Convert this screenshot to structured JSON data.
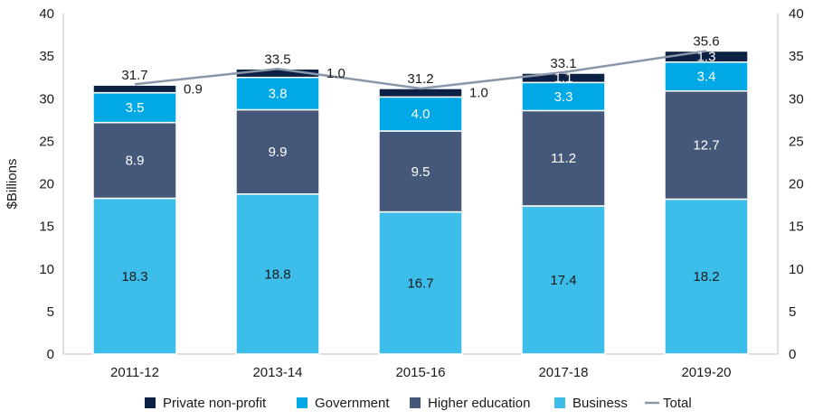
{
  "chart_data": {
    "type": "bar",
    "stacked": true,
    "categories": [
      "2011-12",
      "2013-14",
      "2015-16",
      "2017-18",
      "2019-20"
    ],
    "series": [
      {
        "name": "Business",
        "values": [
          18.3,
          18.8,
          16.7,
          17.4,
          18.2
        ],
        "color": "#3dbde9",
        "label_color": "#1a1a1a"
      },
      {
        "name": "Higher education",
        "values": [
          8.9,
          9.9,
          9.5,
          11.2,
          12.7
        ],
        "color": "#46587a",
        "label_color": "#ffffff"
      },
      {
        "name": "Government",
        "values": [
          3.5,
          3.8,
          4.0,
          3.3,
          3.4
        ],
        "color": "#00a8e6",
        "label_color": "#ffffff"
      },
      {
        "name": "Private non-profit",
        "values": [
          0.9,
          1.0,
          1.0,
          1.1,
          1.3
        ],
        "color": "#0d2145",
        "label_color": "#ffffff"
      }
    ],
    "total": {
      "name": "Total",
      "values": [
        31.7,
        33.5,
        31.2,
        33.1,
        35.6
      ],
      "color": "#8a97ab"
    },
    "small_value_labels": [
      "0.9",
      "1.0",
      "1.0",
      "1.1",
      "1.3"
    ],
    "ylabel": "$Billions",
    "ylim": [
      0,
      40
    ],
    "yticks": [
      0,
      5,
      10,
      15,
      20,
      25,
      30,
      35,
      40
    ],
    "secondary_axis": true,
    "grid": false,
    "legend_position": "bottom",
    "legend_order": [
      "Private non-profit",
      "Government",
      "Higher education",
      "Business",
      "Total"
    ]
  }
}
